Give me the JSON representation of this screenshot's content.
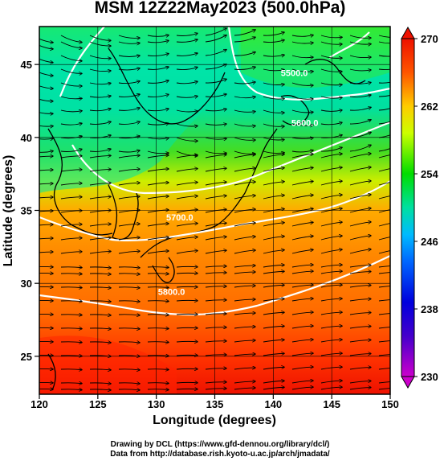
{
  "title": "MSM 12Z22May2023 (500.0hPa)",
  "x_axis": {
    "label": "Longitude (degrees)",
    "ticks": [
      "120",
      "125",
      "130",
      "135",
      "140",
      "145",
      "150"
    ],
    "range": [
      120,
      150
    ]
  },
  "y_axis": {
    "label": "Latitude  (degrees)",
    "ticks": [
      "25",
      "30",
      "35",
      "40",
      "45"
    ],
    "range": [
      22.4,
      47.6
    ]
  },
  "colorbar": {
    "ticks": [
      "230",
      "238",
      "246",
      "254",
      "262",
      "270"
    ],
    "range": [
      230,
      270
    ],
    "colors": [
      "#cc00cc",
      "#0000dd",
      "#00bbff",
      "#00e0a0",
      "#00dd00",
      "#ccff00",
      "#ffcc00",
      "#ff5500",
      "#ee1100"
    ]
  },
  "contours": [
    {
      "label": "5800.0",
      "lon": 131.3,
      "lat": 29.2
    },
    {
      "label": "5700.0",
      "lon": 132.0,
      "lat": 34.3
    },
    {
      "label": "5600.0",
      "lon": 142.7,
      "lat": 40.8
    },
    {
      "label": "5500.0",
      "lon": 141.8,
      "lat": 44.2
    }
  ],
  "credits": {
    "line1": "Drawing by DCL (https://www.gfd-dennou.org/library/dcl/)",
    "line2": "Data from http://database.rish.kyoto-u.ac.jp/arch/jmadata/"
  },
  "wind_field": "westerly"
}
